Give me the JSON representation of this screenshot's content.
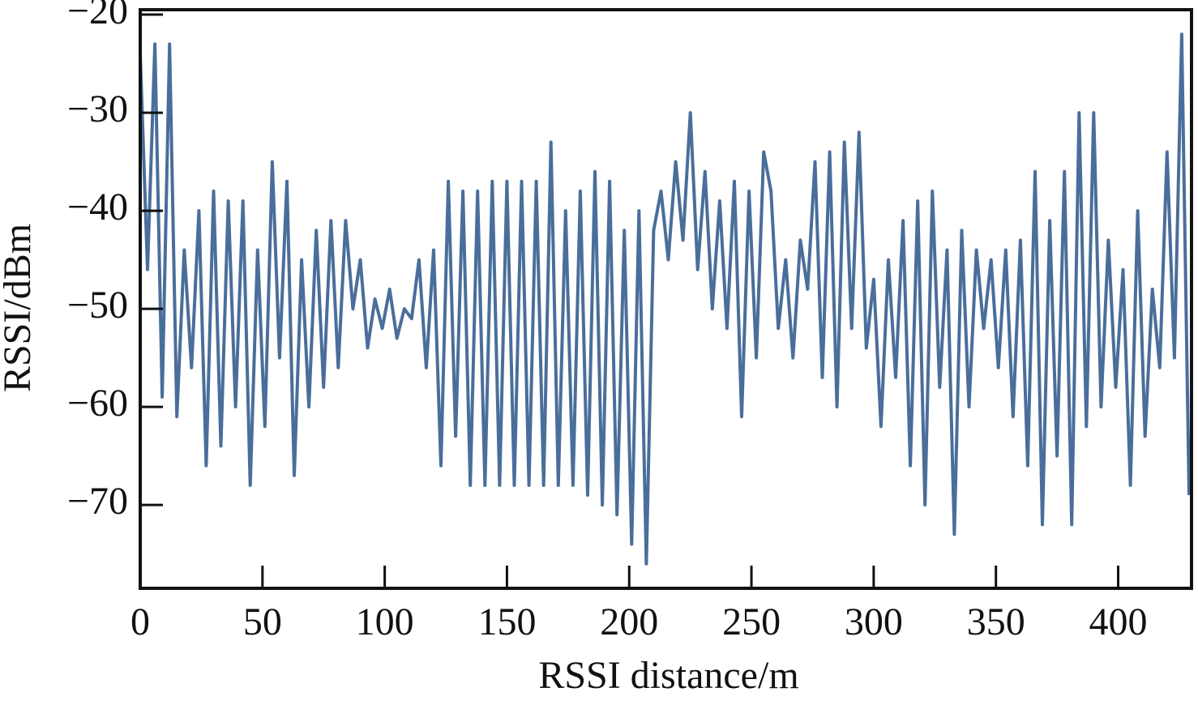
{
  "chart_data": {
    "type": "line",
    "xlabel": "RSSI distance/m",
    "ylabel": "RSSI/dBm",
    "x": [
      0,
      3,
      6,
      9,
      12,
      15,
      18,
      21,
      24,
      27,
      30,
      33,
      36,
      39,
      42,
      45,
      48,
      51,
      54,
      57,
      60,
      63,
      66,
      69,
      72,
      75,
      78,
      81,
      84,
      87,
      90,
      93,
      96,
      99,
      102,
      105,
      108,
      111,
      114,
      117,
      120,
      123,
      126,
      129,
      132,
      135,
      138,
      141,
      144,
      147,
      150,
      153,
      156,
      159,
      162,
      165,
      168,
      171,
      174,
      177,
      180,
      183,
      186,
      189,
      192,
      195,
      198,
      201,
      204,
      207,
      210,
      213,
      216,
      219,
      222,
      225,
      228,
      231,
      234,
      237,
      240,
      243,
      246,
      249,
      252,
      255,
      258,
      261,
      264,
      267,
      270,
      273,
      276,
      279,
      282,
      285,
      288,
      291,
      294,
      297,
      300,
      303,
      306,
      309,
      312,
      315,
      318,
      321,
      324,
      327,
      330,
      333,
      336,
      339,
      342,
      345,
      348,
      351,
      354,
      357,
      360,
      363,
      366,
      369,
      372,
      375,
      378,
      381,
      384,
      387,
      390,
      393,
      396,
      399,
      402,
      405,
      408,
      411,
      414,
      417,
      420,
      423,
      426,
      429
    ],
    "values": [
      -24,
      -46,
      -23,
      -59,
      -23,
      -61,
      -44,
      -56,
      -40,
      -66,
      -38,
      -64,
      -39,
      -60,
      -39,
      -68,
      -44,
      -62,
      -35,
      -55,
      -37,
      -67,
      -45,
      -60,
      -42,
      -58,
      -41,
      -56,
      -41,
      -50,
      -45,
      -54,
      -49,
      -52,
      -48,
      -53,
      -50,
      -51,
      -45,
      -56,
      -44,
      -66,
      -37,
      -63,
      -38,
      -68,
      -38,
      -68,
      -37,
      -68,
      -37,
      -68,
      -37,
      -68,
      -37,
      -68,
      -33,
      -68,
      -40,
      -68,
      -38,
      -69,
      -36,
      -70,
      -37,
      -71,
      -42,
      -74,
      -40,
      -76,
      -42,
      -38,
      -45,
      -35,
      -43,
      -30,
      -46,
      -36,
      -50,
      -39,
      -52,
      -37,
      -61,
      -38,
      -55,
      -34,
      -38,
      -52,
      -45,
      -55,
      -43,
      -48,
      -35,
      -57,
      -34,
      -60,
      -33,
      -52,
      -32,
      -54,
      -47,
      -62,
      -45,
      -57,
      -41,
      -66,
      -39,
      -70,
      -38,
      -58,
      -44,
      -73,
      -42,
      -60,
      -44,
      -52,
      -45,
      -56,
      -44,
      -61,
      -43,
      -66,
      -36,
      -72,
      -41,
      -65,
      -36,
      -72,
      -30,
      -62,
      -30,
      -60,
      -43,
      -58,
      -46,
      -68,
      -40,
      -63,
      -48,
      -56,
      -34,
      -55,
      -22,
      -69
    ],
    "color": "#4a6e9b",
    "xlim": [
      0,
      430
    ],
    "ylim": [
      -78.5,
      -19.5
    ],
    "xticks": [
      0,
      50,
      100,
      150,
      200,
      250,
      300,
      350,
      400
    ],
    "yticks": [
      {
        "value": -70,
        "label": "−70"
      },
      {
        "value": -60,
        "label": "−60"
      },
      {
        "value": -50,
        "label": "−50"
      },
      {
        "value": -40,
        "label": "−40"
      },
      {
        "value": -30,
        "label": "−30"
      },
      {
        "value": -20,
        "label": "−20"
      }
    ],
    "grid": false
  }
}
